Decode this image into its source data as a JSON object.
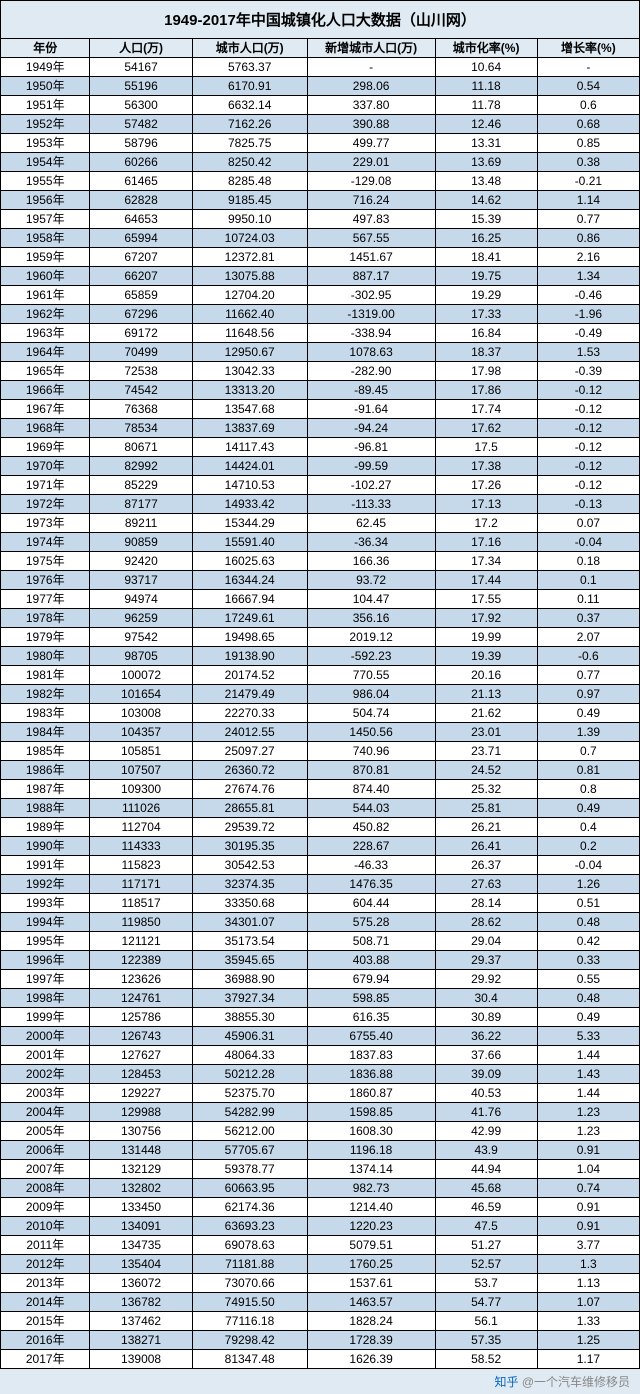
{
  "title": "1949-2017年中国城镇化人口大数据（山川网）",
  "columns": [
    "年份",
    "人口(万)",
    "城市人口(万)",
    "新增城市人口(万)",
    "城市化率(%)",
    "增长率(%)"
  ],
  "column_widths": [
    "14%",
    "16%",
    "18%",
    "20%",
    "16%",
    "16%"
  ],
  "header_bg": "#dfeaf3",
  "row_odd_bg": "#ffffff",
  "row_even_bg": "#c5d9ea",
  "border_color": "#000000",
  "font_family": "Microsoft YaHei",
  "title_fontsize": 15,
  "cell_fontsize": 12,
  "footer": {
    "brand": "知乎",
    "text": "@一个汽车维修移员"
  },
  "rows": [
    [
      "1949年",
      "54167",
      "5763.37",
      "-",
      "10.64",
      "-"
    ],
    [
      "1950年",
      "55196",
      "6170.91",
      "298.06",
      "11.18",
      "0.54"
    ],
    [
      "1951年",
      "56300",
      "6632.14",
      "337.80",
      "11.78",
      "0.6"
    ],
    [
      "1952年",
      "57482",
      "7162.26",
      "390.88",
      "12.46",
      "0.68"
    ],
    [
      "1953年",
      "58796",
      "7825.75",
      "499.77",
      "13.31",
      "0.85"
    ],
    [
      "1954年",
      "60266",
      "8250.42",
      "229.01",
      "13.69",
      "0.38"
    ],
    [
      "1955年",
      "61465",
      "8285.48",
      "-129.08",
      "13.48",
      "-0.21"
    ],
    [
      "1956年",
      "62828",
      "9185.45",
      "716.24",
      "14.62",
      "1.14"
    ],
    [
      "1957年",
      "64653",
      "9950.10",
      "497.83",
      "15.39",
      "0.77"
    ],
    [
      "1958年",
      "65994",
      "10724.03",
      "567.55",
      "16.25",
      "0.86"
    ],
    [
      "1959年",
      "67207",
      "12372.81",
      "1451.67",
      "18.41",
      "2.16"
    ],
    [
      "1960年",
      "66207",
      "13075.88",
      "887.17",
      "19.75",
      "1.34"
    ],
    [
      "1961年",
      "65859",
      "12704.20",
      "-302.95",
      "19.29",
      "-0.46"
    ],
    [
      "1962年",
      "67296",
      "11662.40",
      "-1319.00",
      "17.33",
      "-1.96"
    ],
    [
      "1963年",
      "69172",
      "11648.56",
      "-338.94",
      "16.84",
      "-0.49"
    ],
    [
      "1964年",
      "70499",
      "12950.67",
      "1078.63",
      "18.37",
      "1.53"
    ],
    [
      "1965年",
      "72538",
      "13042.33",
      "-282.90",
      "17.98",
      "-0.39"
    ],
    [
      "1966年",
      "74542",
      "13313.20",
      "-89.45",
      "17.86",
      "-0.12"
    ],
    [
      "1967年",
      "76368",
      "13547.68",
      "-91.64",
      "17.74",
      "-0.12"
    ],
    [
      "1968年",
      "78534",
      "13837.69",
      "-94.24",
      "17.62",
      "-0.12"
    ],
    [
      "1969年",
      "80671",
      "14117.43",
      "-96.81",
      "17.5",
      "-0.12"
    ],
    [
      "1970年",
      "82992",
      "14424.01",
      "-99.59",
      "17.38",
      "-0.12"
    ],
    [
      "1971年",
      "85229",
      "14710.53",
      "-102.27",
      "17.26",
      "-0.12"
    ],
    [
      "1972年",
      "87177",
      "14933.42",
      "-113.33",
      "17.13",
      "-0.13"
    ],
    [
      "1973年",
      "89211",
      "15344.29",
      "62.45",
      "17.2",
      "0.07"
    ],
    [
      "1974年",
      "90859",
      "15591.40",
      "-36.34",
      "17.16",
      "-0.04"
    ],
    [
      "1975年",
      "92420",
      "16025.63",
      "166.36",
      "17.34",
      "0.18"
    ],
    [
      "1976年",
      "93717",
      "16344.24",
      "93.72",
      "17.44",
      "0.1"
    ],
    [
      "1977年",
      "94974",
      "16667.94",
      "104.47",
      "17.55",
      "0.11"
    ],
    [
      "1978年",
      "96259",
      "17249.61",
      "356.16",
      "17.92",
      "0.37"
    ],
    [
      "1979年",
      "97542",
      "19498.65",
      "2019.12",
      "19.99",
      "2.07"
    ],
    [
      "1980年",
      "98705",
      "19138.90",
      "-592.23",
      "19.39",
      "-0.6"
    ],
    [
      "1981年",
      "100072",
      "20174.52",
      "770.55",
      "20.16",
      "0.77"
    ],
    [
      "1982年",
      "101654",
      "21479.49",
      "986.04",
      "21.13",
      "0.97"
    ],
    [
      "1983年",
      "103008",
      "22270.33",
      "504.74",
      "21.62",
      "0.49"
    ],
    [
      "1984年",
      "104357",
      "24012.55",
      "1450.56",
      "23.01",
      "1.39"
    ],
    [
      "1985年",
      "105851",
      "25097.27",
      "740.96",
      "23.71",
      "0.7"
    ],
    [
      "1986年",
      "107507",
      "26360.72",
      "870.81",
      "24.52",
      "0.81"
    ],
    [
      "1987年",
      "109300",
      "27674.76",
      "874.40",
      "25.32",
      "0.8"
    ],
    [
      "1988年",
      "111026",
      "28655.81",
      "544.03",
      "25.81",
      "0.49"
    ],
    [
      "1989年",
      "112704",
      "29539.72",
      "450.82",
      "26.21",
      "0.4"
    ],
    [
      "1990年",
      "114333",
      "30195.35",
      "228.67",
      "26.41",
      "0.2"
    ],
    [
      "1991年",
      "115823",
      "30542.53",
      "-46.33",
      "26.37",
      "-0.04"
    ],
    [
      "1992年",
      "117171",
      "32374.35",
      "1476.35",
      "27.63",
      "1.26"
    ],
    [
      "1993年",
      "118517",
      "33350.68",
      "604.44",
      "28.14",
      "0.51"
    ],
    [
      "1994年",
      "119850",
      "34301.07",
      "575.28",
      "28.62",
      "0.48"
    ],
    [
      "1995年",
      "121121",
      "35173.54",
      "508.71",
      "29.04",
      "0.42"
    ],
    [
      "1996年",
      "122389",
      "35945.65",
      "403.88",
      "29.37",
      "0.33"
    ],
    [
      "1997年",
      "123626",
      "36988.90",
      "679.94",
      "29.92",
      "0.55"
    ],
    [
      "1998年",
      "124761",
      "37927.34",
      "598.85",
      "30.4",
      "0.48"
    ],
    [
      "1999年",
      "125786",
      "38855.30",
      "616.35",
      "30.89",
      "0.49"
    ],
    [
      "2000年",
      "126743",
      "45906.31",
      "6755.40",
      "36.22",
      "5.33"
    ],
    [
      "2001年",
      "127627",
      "48064.33",
      "1837.83",
      "37.66",
      "1.44"
    ],
    [
      "2002年",
      "128453",
      "50212.28",
      "1836.88",
      "39.09",
      "1.43"
    ],
    [
      "2003年",
      "129227",
      "52375.70",
      "1860.87",
      "40.53",
      "1.44"
    ],
    [
      "2004年",
      "129988",
      "54282.99",
      "1598.85",
      "41.76",
      "1.23"
    ],
    [
      "2005年",
      "130756",
      "56212.00",
      "1608.30",
      "42.99",
      "1.23"
    ],
    [
      "2006年",
      "131448",
      "57705.67",
      "1196.18",
      "43.9",
      "0.91"
    ],
    [
      "2007年",
      "132129",
      "59378.77",
      "1374.14",
      "44.94",
      "1.04"
    ],
    [
      "2008年",
      "132802",
      "60663.95",
      "982.73",
      "45.68",
      "0.74"
    ],
    [
      "2009年",
      "133450",
      "62174.36",
      "1214.40",
      "46.59",
      "0.91"
    ],
    [
      "2010年",
      "134091",
      "63693.23",
      "1220.23",
      "47.5",
      "0.91"
    ],
    [
      "2011年",
      "134735",
      "69078.63",
      "5079.51",
      "51.27",
      "3.77"
    ],
    [
      "2012年",
      "135404",
      "71181.88",
      "1760.25",
      "52.57",
      "1.3"
    ],
    [
      "2013年",
      "136072",
      "73070.66",
      "1537.61",
      "53.7",
      "1.13"
    ],
    [
      "2014年",
      "136782",
      "74915.50",
      "1463.57",
      "54.77",
      "1.07"
    ],
    [
      "2015年",
      "137462",
      "77116.18",
      "1828.24",
      "56.1",
      "1.33"
    ],
    [
      "2016年",
      "138271",
      "79298.42",
      "1728.39",
      "57.35",
      "1.25"
    ],
    [
      "2017年",
      "139008",
      "81347.48",
      "1626.39",
      "58.52",
      "1.17"
    ]
  ]
}
